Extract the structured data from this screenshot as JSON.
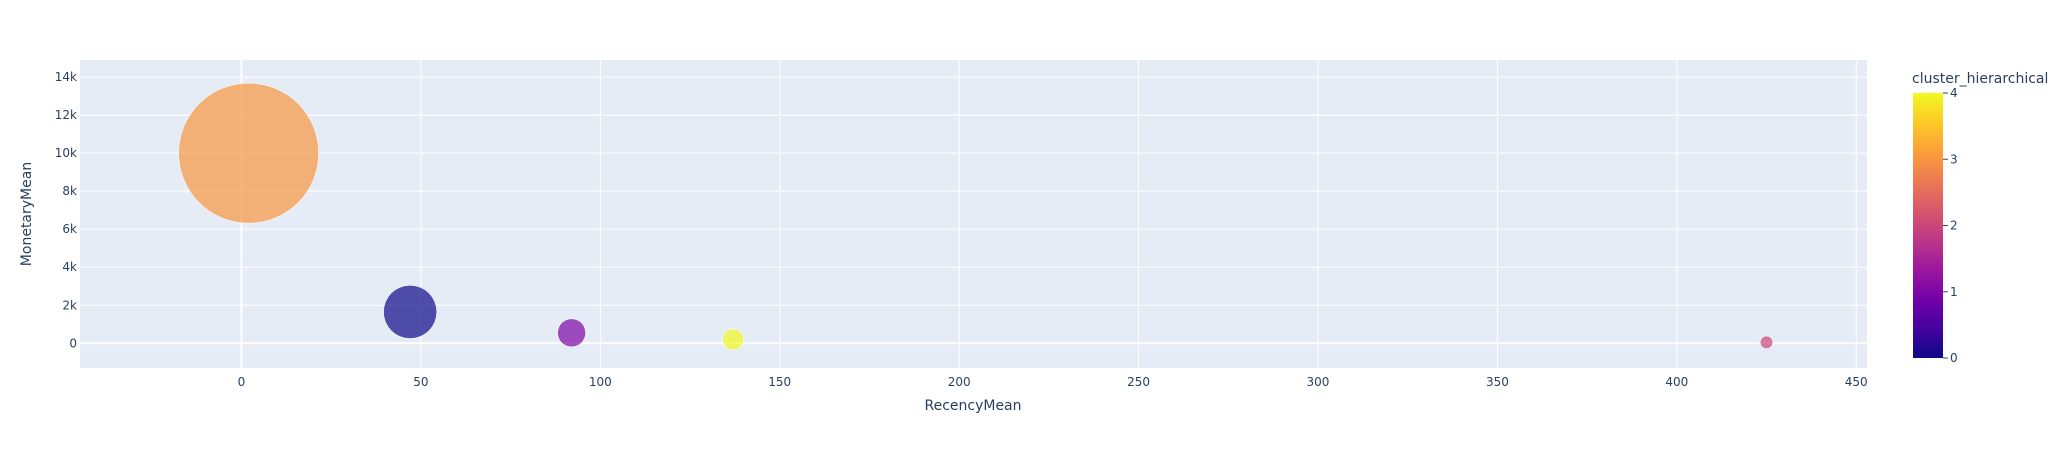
{
  "chart_data": {
    "type": "scatter",
    "subtype": "bubble",
    "xlabel": "RecencyMean",
    "ylabel": "MonetaryMean",
    "xlim": [
      -45,
      453
    ],
    "ylim": [
      -1300,
      14900
    ],
    "x_ticks": [
      0,
      50,
      100,
      150,
      200,
      250,
      300,
      350,
      400,
      450
    ],
    "x_tick_labels": [
      "0",
      "50",
      "100",
      "150",
      "200",
      "250",
      "300",
      "350",
      "400",
      "450"
    ],
    "y_ticks": [
      0,
      2000,
      4000,
      6000,
      8000,
      10000,
      12000,
      14000
    ],
    "y_tick_labels": [
      "0",
      "2k",
      "4k",
      "6k",
      "8k",
      "10k",
      "12k",
      "14k"
    ],
    "grid": true,
    "plot_background": "#e5ecf6",
    "colorbar": {
      "title": "cluster_hierarchical",
      "range": [
        0,
        4
      ],
      "ticks": [
        0,
        1,
        2,
        3,
        4
      ],
      "tick_labels": [
        "0",
        "1",
        "2",
        "3",
        "4"
      ],
      "colorscale": [
        "#0d0887",
        "#46039f",
        "#7201a8",
        "#9c179e",
        "#bd3786",
        "#d8576b",
        "#ed7953",
        "#fb9f3a",
        "#fdca26",
        "#f0f921"
      ]
    },
    "points": [
      {
        "x": 2,
        "y": 10000,
        "cluster": 3,
        "size_rel": 1.0
      },
      {
        "x": 47,
        "y": 1650,
        "cluster": 0,
        "size_rel": 0.38
      },
      {
        "x": 92,
        "y": 550,
        "cluster": 1,
        "size_rel": 0.2
      },
      {
        "x": 137,
        "y": 200,
        "cluster": 4,
        "size_rel": 0.15
      },
      {
        "x": 425,
        "y": 50,
        "cluster": 2,
        "size_rel": 0.09
      }
    ]
  }
}
